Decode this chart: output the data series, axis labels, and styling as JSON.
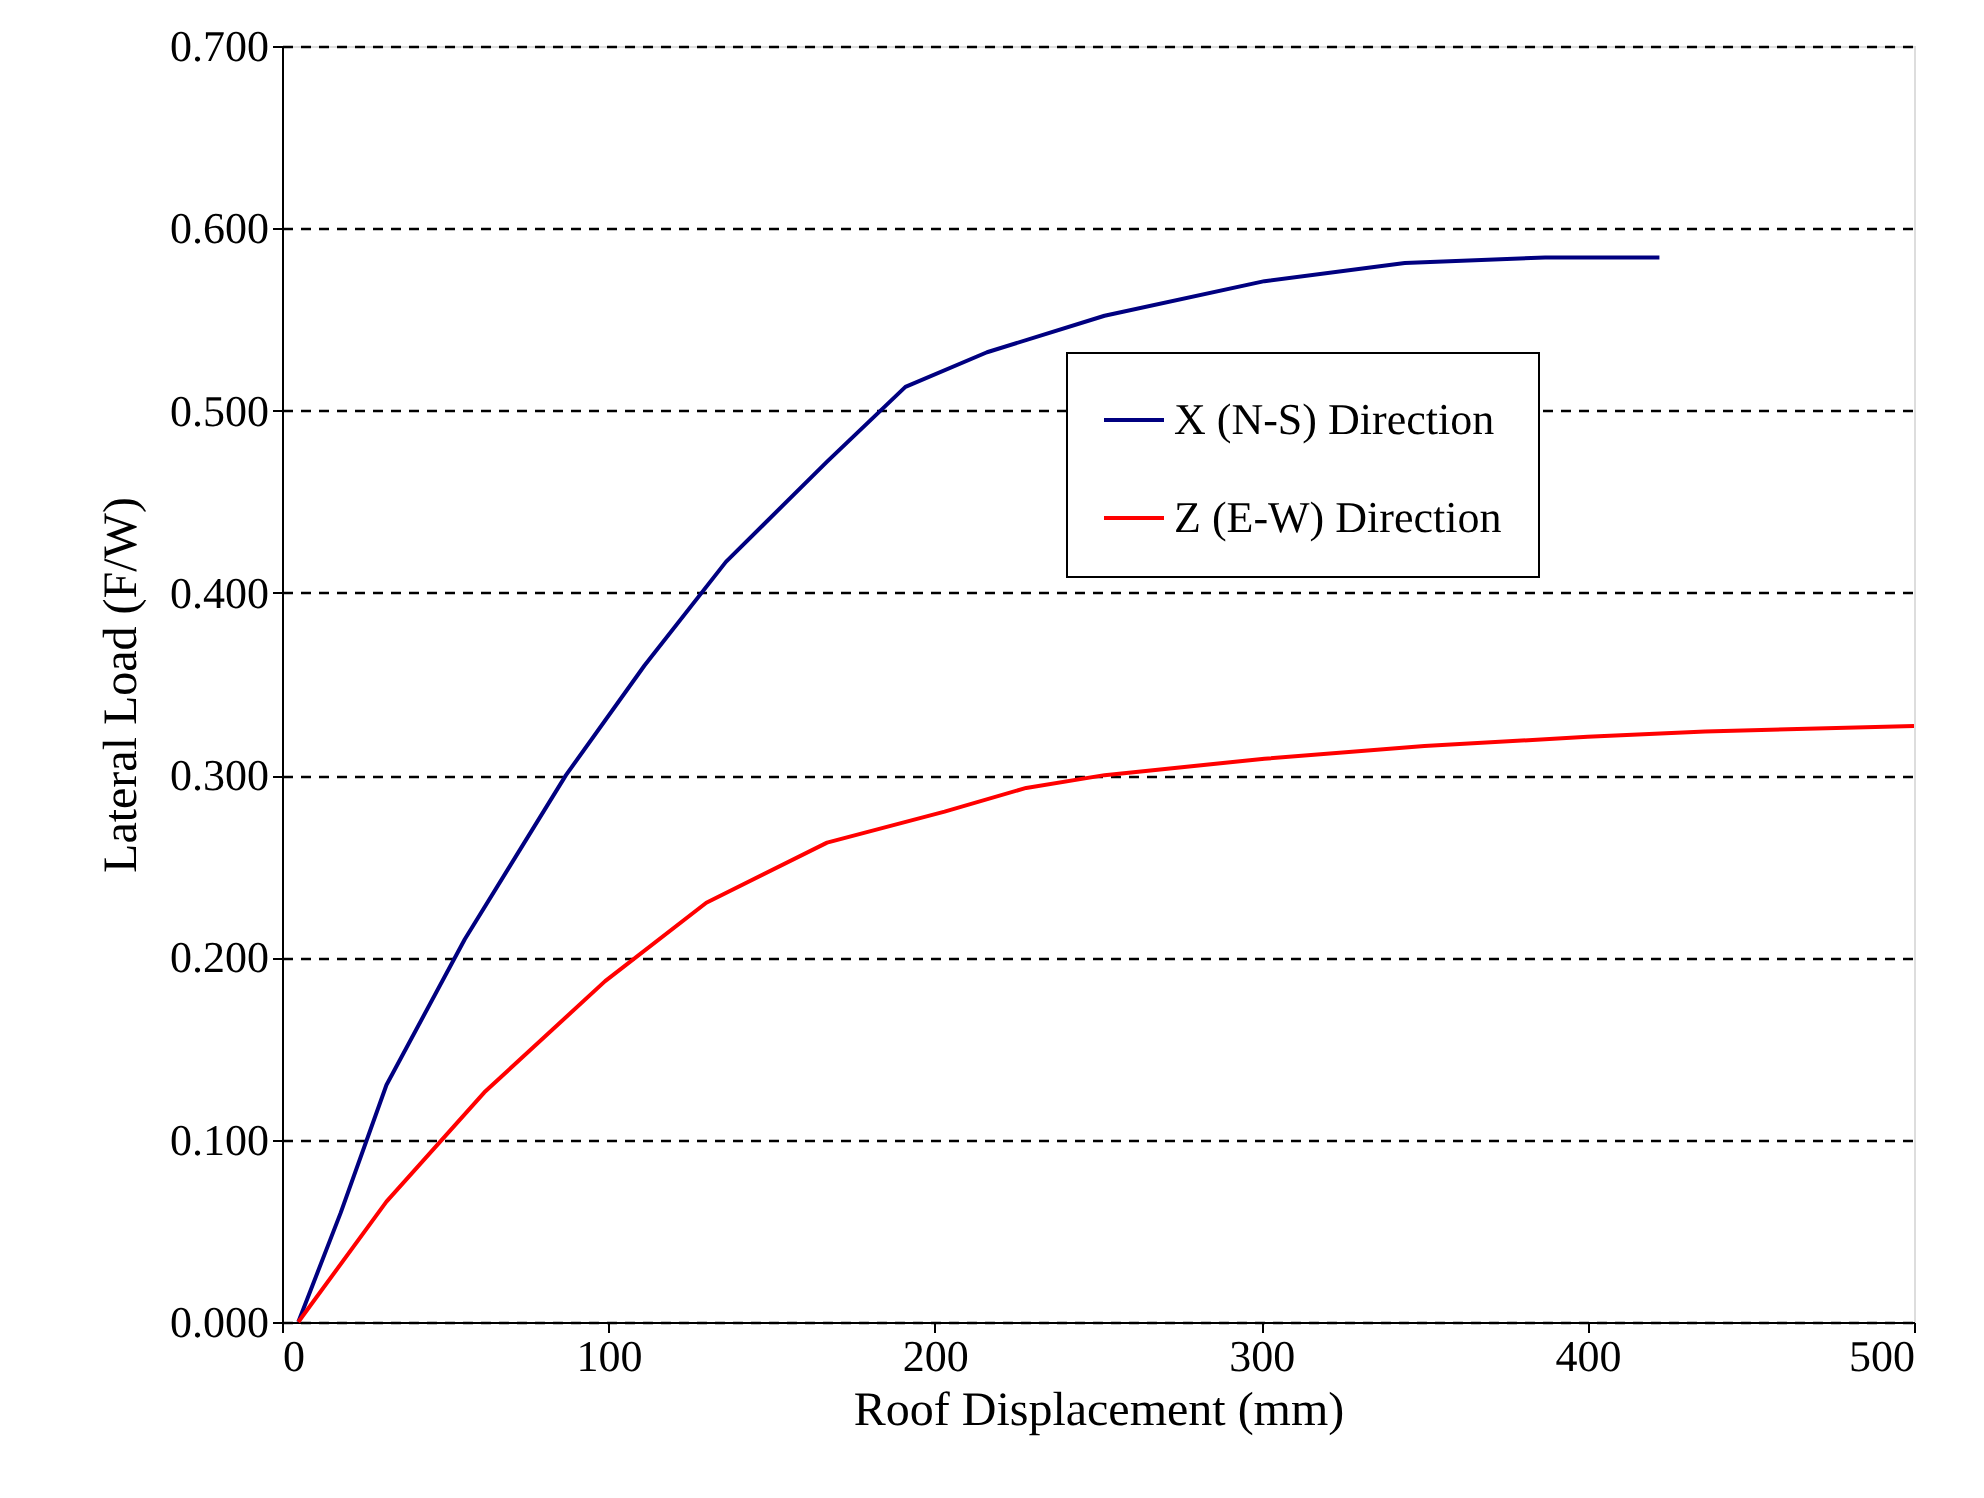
{
  "chart_data": {
    "type": "line",
    "xlabel": "Roof Displacement (mm)",
    "ylabel": "Lateral Load (F/W)",
    "xlim": [
      0,
      500
    ],
    "xticks": [
      0,
      100,
      200,
      300,
      400,
      500
    ],
    "ylim": [
      0,
      0.7
    ],
    "yticks": [
      {
        "value": 0,
        "label": "0.000"
      },
      {
        "value": 0.1,
        "label": "0.100"
      },
      {
        "value": 0.2,
        "label": "0.200"
      },
      {
        "value": 0.3,
        "label": "0.300"
      },
      {
        "value": 0.4,
        "label": "0.400"
      },
      {
        "value": 0.5,
        "label": "0.500"
      },
      {
        "value": 0.6,
        "label": "0.600"
      },
      {
        "value": 0.7,
        "label": "0.700"
      }
    ],
    "grid": "y",
    "legend": "top right",
    "marker": "none",
    "line_style": "solid",
    "series": [
      {
        "name": "X (N-S) Direction",
        "color": "#000080",
        "x": [
          5,
          18,
          32,
          56,
          87,
          111,
          136,
          167,
          191,
          216,
          252,
          301,
          344,
          387,
          422
        ],
        "values": [
          0,
          0.06,
          0.13,
          0.21,
          0.3,
          0.36,
          0.417,
          0.472,
          0.513,
          0.532,
          0.552,
          0.571,
          0.581,
          0.584,
          0.584
        ]
      },
      {
        "name": "Z (E-W) Direction",
        "color": "#ff0000",
        "x": [
          5,
          32,
          62,
          99,
          130,
          167,
          203,
          228,
          252,
          301,
          350,
          400,
          436,
          500
        ],
        "values": [
          0,
          0.066,
          0.126,
          0.187,
          0.23,
          0.263,
          0.28,
          0.293,
          0.3,
          0.309,
          0.316,
          0.321,
          0.324,
          0.327
        ]
      }
    ]
  }
}
